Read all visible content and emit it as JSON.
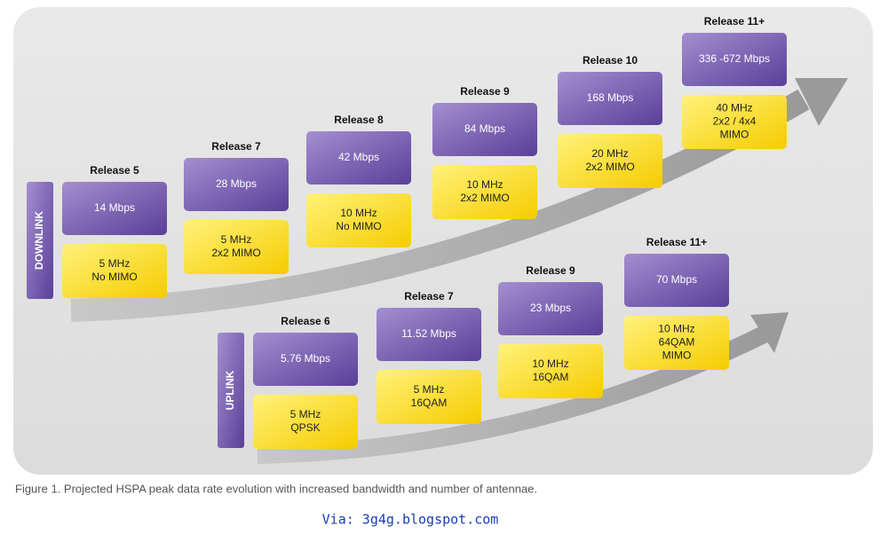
{
  "downlink": {
    "label": "DOWNLINK",
    "releases": [
      {
        "release": "Release 5",
        "rate": "14 Mbps",
        "config": [
          "5 MHz",
          "No MIMO"
        ]
      },
      {
        "release": "Release 7",
        "rate": "28 Mbps",
        "config": [
          "5 MHz",
          "2x2 MIMO"
        ]
      },
      {
        "release": "Release 8",
        "rate": "42 Mbps",
        "config": [
          "10 MHz",
          "No MIMO"
        ]
      },
      {
        "release": "Release 9",
        "rate": "84 Mbps",
        "config": [
          "10 MHz",
          "2x2 MIMO"
        ]
      },
      {
        "release": "Release 10",
        "rate": "168 Mbps",
        "config": [
          "20 MHz",
          "2x2 MIMO"
        ]
      },
      {
        "release": "Release 11+",
        "rate": "336 -672 Mbps",
        "config": [
          "40 MHz",
          "2x2 / 4x4",
          "MIMO"
        ]
      }
    ]
  },
  "uplink": {
    "label": "UPLINK",
    "releases": [
      {
        "release": "Release 6",
        "rate": "5.76 Mbps",
        "config": [
          "5 MHz",
          "QPSK"
        ]
      },
      {
        "release": "Release 7",
        "rate": "11.52 Mbps",
        "config": [
          "5 MHz",
          "16QAM"
        ]
      },
      {
        "release": "Release 9",
        "rate": "23 Mbps",
        "config": [
          "10 MHz",
          "16QAM"
        ]
      },
      {
        "release": "Release 11+",
        "rate": "70 Mbps",
        "config": [
          "10 MHz",
          "64QAM",
          "MIMO"
        ]
      }
    ]
  },
  "caption": "Figure 1. Projected HSPA peak data rate evolution with increased bandwidth and number of antennae.",
  "via": "Via: 3g4g.blogspot.com"
}
